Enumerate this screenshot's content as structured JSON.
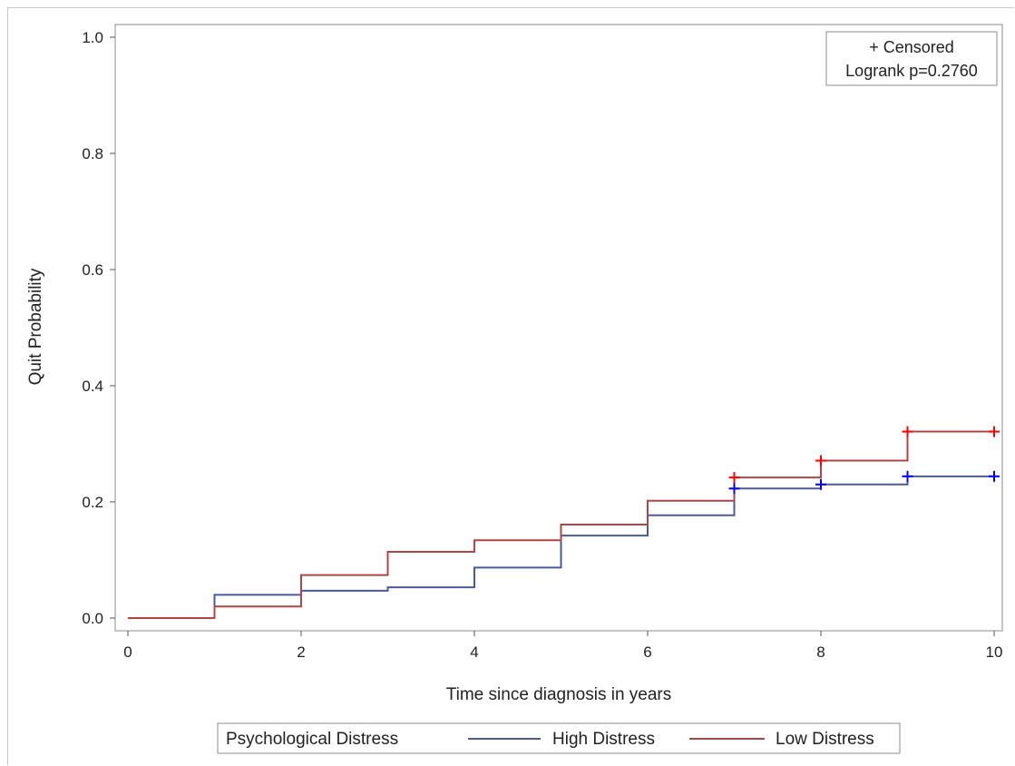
{
  "chart_data": {
    "type": "line",
    "step": true,
    "xlabel": "Time since diagnosis in years",
    "ylabel": "Quit Probability",
    "xlim": [
      0,
      10
    ],
    "ylim": [
      0,
      1.0
    ],
    "xticks": [
      "0",
      "2",
      "4",
      "6",
      "8",
      "10"
    ],
    "yticks": [
      "0.0",
      "0.2",
      "0.4",
      "0.6",
      "0.8",
      "1.0"
    ],
    "grid": false,
    "legend": {
      "placement": "bottom",
      "title": "Psychological Distress",
      "entries": [
        "High Distress",
        "Low Distress"
      ]
    },
    "inset": {
      "placement": "top-right",
      "censored_label": "+ Censored",
      "logrank_label": "Logrank p=0.2760"
    },
    "series": [
      {
        "name": "High Distress",
        "color": "#4a5a9a",
        "censor_color": "#0000ff",
        "x": [
          0,
          1,
          2,
          3,
          4,
          5,
          6,
          7,
          8,
          9,
          10
        ],
        "y": [
          0.0,
          0.04,
          0.047,
          0.053,
          0.087,
          0.142,
          0.177,
          0.223,
          0.23,
          0.244,
          0.244
        ],
        "censored_x": [
          7,
          8,
          9,
          10
        ],
        "censored_y": [
          0.223,
          0.23,
          0.244,
          0.244
        ]
      },
      {
        "name": "Low Distress",
        "color": "#b04545",
        "censor_color": "#ff0000",
        "x": [
          0,
          1,
          2,
          3,
          4,
          5,
          6,
          7,
          8,
          9,
          10
        ],
        "y": [
          0.0,
          0.02,
          0.074,
          0.114,
          0.134,
          0.161,
          0.202,
          0.242,
          0.271,
          0.321,
          0.321
        ],
        "censored_x": [
          7,
          8,
          9,
          10
        ],
        "censored_y": [
          0.242,
          0.271,
          0.321,
          0.321
        ]
      }
    ]
  }
}
